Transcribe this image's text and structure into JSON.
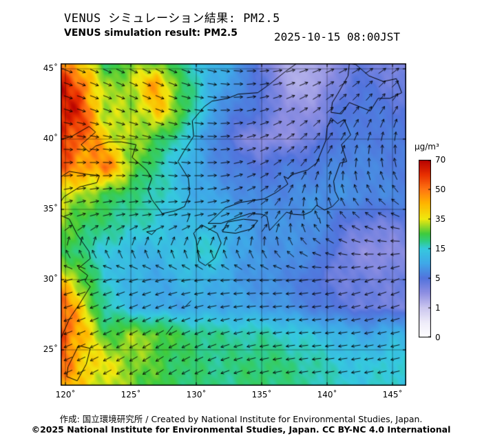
{
  "header": {
    "title_jp": "VENUS シミュレーション結果: PM2.5",
    "title_en": "VENUS simulation result: PM2.5",
    "timestamp": "2025-10-15 08:00JST"
  },
  "colorbar": {
    "unit": "µg/m³",
    "tick_labels": [
      "70",
      "50",
      "35",
      "15",
      "5",
      "1",
      "0"
    ]
  },
  "axes": {
    "lat": [
      {
        "value": 45,
        "label": "45˚"
      },
      {
        "value": 40,
        "label": "40˚"
      },
      {
        "value": 35,
        "label": "35˚"
      },
      {
        "value": 30,
        "label": "30˚"
      },
      {
        "value": 25,
        "label": "25˚"
      }
    ],
    "lon": [
      {
        "value": 120,
        "label": "120˚"
      },
      {
        "value": 125,
        "label": "125˚"
      },
      {
        "value": 130,
        "label": "130˚"
      },
      {
        "value": 135,
        "label": "135˚"
      },
      {
        "value": 140,
        "label": "140˚"
      },
      {
        "value": 145,
        "label": "145˚"
      }
    ]
  },
  "footer": {
    "credit": "作成: 国立環境研究所 / Created by National Institute for Environmental Studies, Japan.",
    "license": "©2025 National Institute for Environmental Studies, Japan. CC BY-NC 4.0 International"
  },
  "chart_data": {
    "type": "heatmap",
    "title": "VENUS simulation result: PM2.5",
    "subtitle_jp": "VENUS シミュレーション結果: PM2.5",
    "timestamp": "2025-10-15 08:00JST",
    "unit": "µg/m³",
    "lon_range": [
      119.63,
      146.05
    ],
    "lat_range": [
      22.45,
      45.39
    ],
    "graticule_step_deg": 5,
    "scale": {
      "ticks": [
        0,
        1,
        5,
        15,
        35,
        50,
        70
      ],
      "color_stops": [
        [
          0,
          "#ffffff"
        ],
        [
          0.5,
          "#efecf9"
        ],
        [
          1,
          "#cbc7ef"
        ],
        [
          3,
          "#8f8fe2"
        ],
        [
          5,
          "#5273dc"
        ],
        [
          10,
          "#3fa8e8"
        ],
        [
          15,
          "#35c9de"
        ],
        [
          20,
          "#2fcc83"
        ],
        [
          25,
          "#3ecb3e"
        ],
        [
          30,
          "#97d826"
        ],
        [
          35,
          "#efe90f"
        ],
        [
          43,
          "#ffb400"
        ],
        [
          50,
          "#ff7512"
        ],
        [
          60,
          "#e82e00"
        ],
        [
          70,
          "#b50000"
        ]
      ]
    },
    "grid": {
      "lons": [
        119,
        121,
        123,
        125,
        127,
        129,
        131,
        133,
        135,
        137,
        139,
        141,
        143,
        145,
        147
      ],
      "lats_top_to_bottom": [
        46,
        44,
        42,
        40,
        38,
        36,
        34,
        32,
        30,
        28,
        26,
        24,
        22
      ],
      "values": [
        [
          55,
          35,
          20,
          25,
          22,
          16,
          12,
          10,
          3,
          2,
          2,
          3,
          4,
          3,
          3
        ],
        [
          65,
          55,
          28,
          32,
          45,
          22,
          12,
          8,
          5,
          2,
          2,
          4,
          5,
          4,
          4
        ],
        [
          68,
          60,
          32,
          30,
          40,
          25,
          10,
          6,
          5,
          3,
          3,
          5,
          6,
          5,
          5
        ],
        [
          65,
          55,
          38,
          30,
          25,
          15,
          8,
          4,
          3,
          3,
          4,
          6,
          6,
          6,
          5
        ],
        [
          55,
          45,
          50,
          30,
          18,
          12,
          8,
          6,
          5,
          6,
          6,
          7,
          7,
          6,
          6
        ],
        [
          40,
          30,
          25,
          20,
          18,
          12,
          10,
          8,
          7,
          7,
          8,
          8,
          7,
          7,
          6
        ],
        [
          30,
          25,
          20,
          18,
          15,
          12,
          12,
          10,
          8,
          8,
          8,
          5,
          4,
          4,
          5
        ],
        [
          25,
          20,
          15,
          12,
          12,
          14,
          16,
          10,
          8,
          8,
          7,
          4,
          3,
          3,
          4
        ],
        [
          45,
          30,
          15,
          12,
          10,
          12,
          12,
          9,
          8,
          7,
          5,
          4,
          4,
          4,
          4
        ],
        [
          60,
          40,
          18,
          12,
          10,
          10,
          10,
          10,
          9,
          8,
          6,
          5,
          4,
          4,
          4
        ],
        [
          65,
          45,
          25,
          30,
          28,
          22,
          20,
          18,
          18,
          16,
          14,
          12,
          10,
          12,
          10
        ],
        [
          55,
          42,
          35,
          30,
          25,
          22,
          20,
          20,
          22,
          20,
          18,
          15,
          14,
          16,
          14
        ],
        [
          45,
          38,
          32,
          28,
          24,
          22,
          20,
          20,
          22,
          20,
          18,
          16,
          15,
          16,
          15
        ]
      ]
    },
    "wind": {
      "lons": [
        119,
        123,
        127,
        131,
        135,
        139,
        143,
        147
      ],
      "lats_top_to_bottom": [
        46,
        42,
        38,
        34,
        30,
        26,
        22
      ],
      "angles_deg_ccw_from_east": [
        [
          -20,
          -25,
          -30,
          -15,
          0,
          15,
          25,
          30
        ],
        [
          -15,
          -20,
          -20,
          -5,
          15,
          35,
          55,
          65
        ],
        [
          5,
          0,
          -10,
          0,
          25,
          60,
          95,
          115
        ],
        [
          25,
          15,
          10,
          15,
          40,
          120,
          155,
          175
        ],
        [
          195,
          200,
          195,
          185,
          180,
          190,
          200,
          205
        ],
        [
          200,
          205,
          210,
          200,
          190,
          185,
          190,
          195
        ],
        [
          205,
          210,
          215,
          205,
          195,
          190,
          190,
          195
        ]
      ]
    },
    "coastlines": [
      [
        [
          119.3,
          39.9
        ],
        [
          120.5,
          40.2
        ],
        [
          121.8,
          40.9
        ],
        [
          122.3,
          40.5
        ],
        [
          121.2,
          39.6
        ],
        [
          121.8,
          39.1
        ],
        [
          122.3,
          39.5
        ],
        [
          123.3,
          39.8
        ],
        [
          124.3,
          39.8
        ]
      ],
      [
        [
          124.3,
          39.8
        ],
        [
          125.4,
          39.6
        ],
        [
          125.1,
          38.7
        ],
        [
          126.2,
          37.8
        ],
        [
          126.6,
          37.2
        ],
        [
          126.3,
          36.4
        ],
        [
          126.6,
          35.7
        ],
        [
          127.4,
          34.7
        ],
        [
          128.4,
          34.9
        ],
        [
          129.1,
          35.2
        ],
        [
          129.5,
          36.1
        ],
        [
          129.4,
          37.2
        ],
        [
          128.6,
          38.4
        ],
        [
          129.1,
          39.2
        ],
        [
          129.8,
          40.2
        ],
        [
          129.7,
          41.3
        ],
        [
          130.6,
          42.3
        ],
        [
          131.2,
          42.7
        ],
        [
          132.4,
          42.9
        ],
        [
          133.2,
          43.2
        ],
        [
          134.7,
          43.3
        ],
        [
          135.6,
          43.9
        ],
        [
          136.8,
          44.8
        ],
        [
          137.7,
          45.4
        ]
      ],
      [
        [
          119.3,
          37.1
        ],
        [
          120.3,
          37.7
        ],
        [
          121.6,
          37.5
        ],
        [
          122.6,
          37.4
        ],
        [
          122.4,
          36.9
        ],
        [
          121.1,
          36.6
        ],
        [
          119.9,
          35.9
        ],
        [
          119.3,
          35.1
        ]
      ],
      [
        [
          119.3,
          34.7
        ],
        [
          120.3,
          34.3
        ],
        [
          120.9,
          33.2
        ],
        [
          121.8,
          32.0
        ],
        [
          121.9,
          31.5
        ],
        [
          121.0,
          30.8
        ],
        [
          121.7,
          30.3
        ],
        [
          121.5,
          29.9
        ],
        [
          121.9,
          29.5
        ],
        [
          121.1,
          28.3
        ],
        [
          120.3,
          27.2
        ],
        [
          119.6,
          25.7
        ],
        [
          119.3,
          25.0
        ]
      ],
      [
        [
          121.0,
          25.3
        ],
        [
          121.9,
          25.1
        ],
        [
          121.6,
          24.0
        ],
        [
          120.9,
          22.8
        ],
        [
          120.1,
          23.1
        ],
        [
          120.2,
          23.8
        ],
        [
          121.0,
          25.3
        ]
      ],
      [
        [
          130.0,
          32.8
        ],
        [
          130.2,
          31.3
        ],
        [
          130.7,
          31.0
        ],
        [
          131.4,
          31.5
        ],
        [
          131.9,
          32.6
        ],
        [
          131.6,
          33.3
        ],
        [
          131.0,
          33.6
        ],
        [
          130.4,
          33.9
        ],
        [
          129.8,
          33.3
        ],
        [
          130.0,
          32.8
        ]
      ],
      [
        [
          132.0,
          33.4
        ],
        [
          133.0,
          33.3
        ],
        [
          134.2,
          33.6
        ],
        [
          134.7,
          34.2
        ],
        [
          133.6,
          34.3
        ],
        [
          132.4,
          34.1
        ],
        [
          132.0,
          33.4
        ]
      ],
      [
        [
          130.9,
          34.0
        ],
        [
          131.9,
          34.0
        ],
        [
          133.1,
          34.4
        ],
        [
          134.1,
          34.7
        ],
        [
          135.0,
          34.65
        ],
        [
          135.4,
          34.5
        ],
        [
          135.6,
          33.5
        ],
        [
          136.2,
          34.1
        ],
        [
          136.9,
          34.8
        ],
        [
          137.4,
          34.65
        ],
        [
          138.2,
          34.6
        ],
        [
          138.8,
          34.85
        ],
        [
          139.2,
          35.3
        ],
        [
          139.8,
          34.95
        ],
        [
          140.4,
          35.2
        ],
        [
          140.9,
          35.7
        ],
        [
          140.6,
          36.3
        ],
        [
          140.5,
          37.0
        ],
        [
          141.0,
          38.3
        ],
        [
          141.5,
          38.4
        ],
        [
          141.1,
          39.6
        ],
        [
          141.8,
          40.3
        ],
        [
          141.3,
          41.4
        ],
        [
          140.8,
          41.1
        ],
        [
          140.3,
          41.5
        ],
        [
          140.0,
          40.8
        ],
        [
          139.9,
          39.9
        ],
        [
          139.2,
          38.3
        ],
        [
          138.5,
          37.8
        ],
        [
          137.4,
          37.5
        ],
        [
          137.0,
          37.2
        ],
        [
          136.7,
          37.35
        ],
        [
          137.0,
          36.8
        ],
        [
          136.1,
          36.2
        ],
        [
          135.2,
          35.75
        ],
        [
          133.4,
          35.5
        ],
        [
          132.2,
          35.1
        ],
        [
          131.4,
          34.4
        ],
        [
          130.9,
          34.0
        ]
      ],
      [
        [
          140.4,
          42.6
        ],
        [
          140.3,
          41.9
        ],
        [
          141.1,
          41.8
        ],
        [
          141.7,
          42.6
        ],
        [
          142.5,
          42.3
        ],
        [
          143.3,
          42.0
        ],
        [
          143.9,
          42.9
        ],
        [
          144.8,
          42.9
        ],
        [
          145.7,
          43.3
        ],
        [
          145.3,
          44.3
        ],
        [
          144.3,
          44.1
        ],
        [
          143.2,
          44.5
        ],
        [
          142.2,
          45.3
        ],
        [
          141.7,
          45.4
        ],
        [
          141.6,
          44.5
        ],
        [
          140.8,
          43.2
        ],
        [
          140.4,
          42.6
        ]
      ],
      [
        [
          141.9,
          45.6
        ],
        [
          142.4,
          46.4
        ]
      ],
      [
        [
          126.2,
          33.4
        ],
        [
          126.9,
          33.5
        ],
        [
          126.6,
          33.2
        ],
        [
          126.2,
          33.4
        ]
      ],
      [
        [
          127.7,
          26.1
        ],
        [
          128.2,
          26.7
        ]
      ],
      [
        [
          129.2,
          28.1
        ],
        [
          129.6,
          28.5
        ]
      ],
      [
        [
          129.3,
          34.1
        ],
        [
          129.5,
          34.6
        ]
      ],
      [
        [
          139.4,
          34.4
        ],
        [
          139.5,
          34.0
        ]
      ]
    ]
  }
}
